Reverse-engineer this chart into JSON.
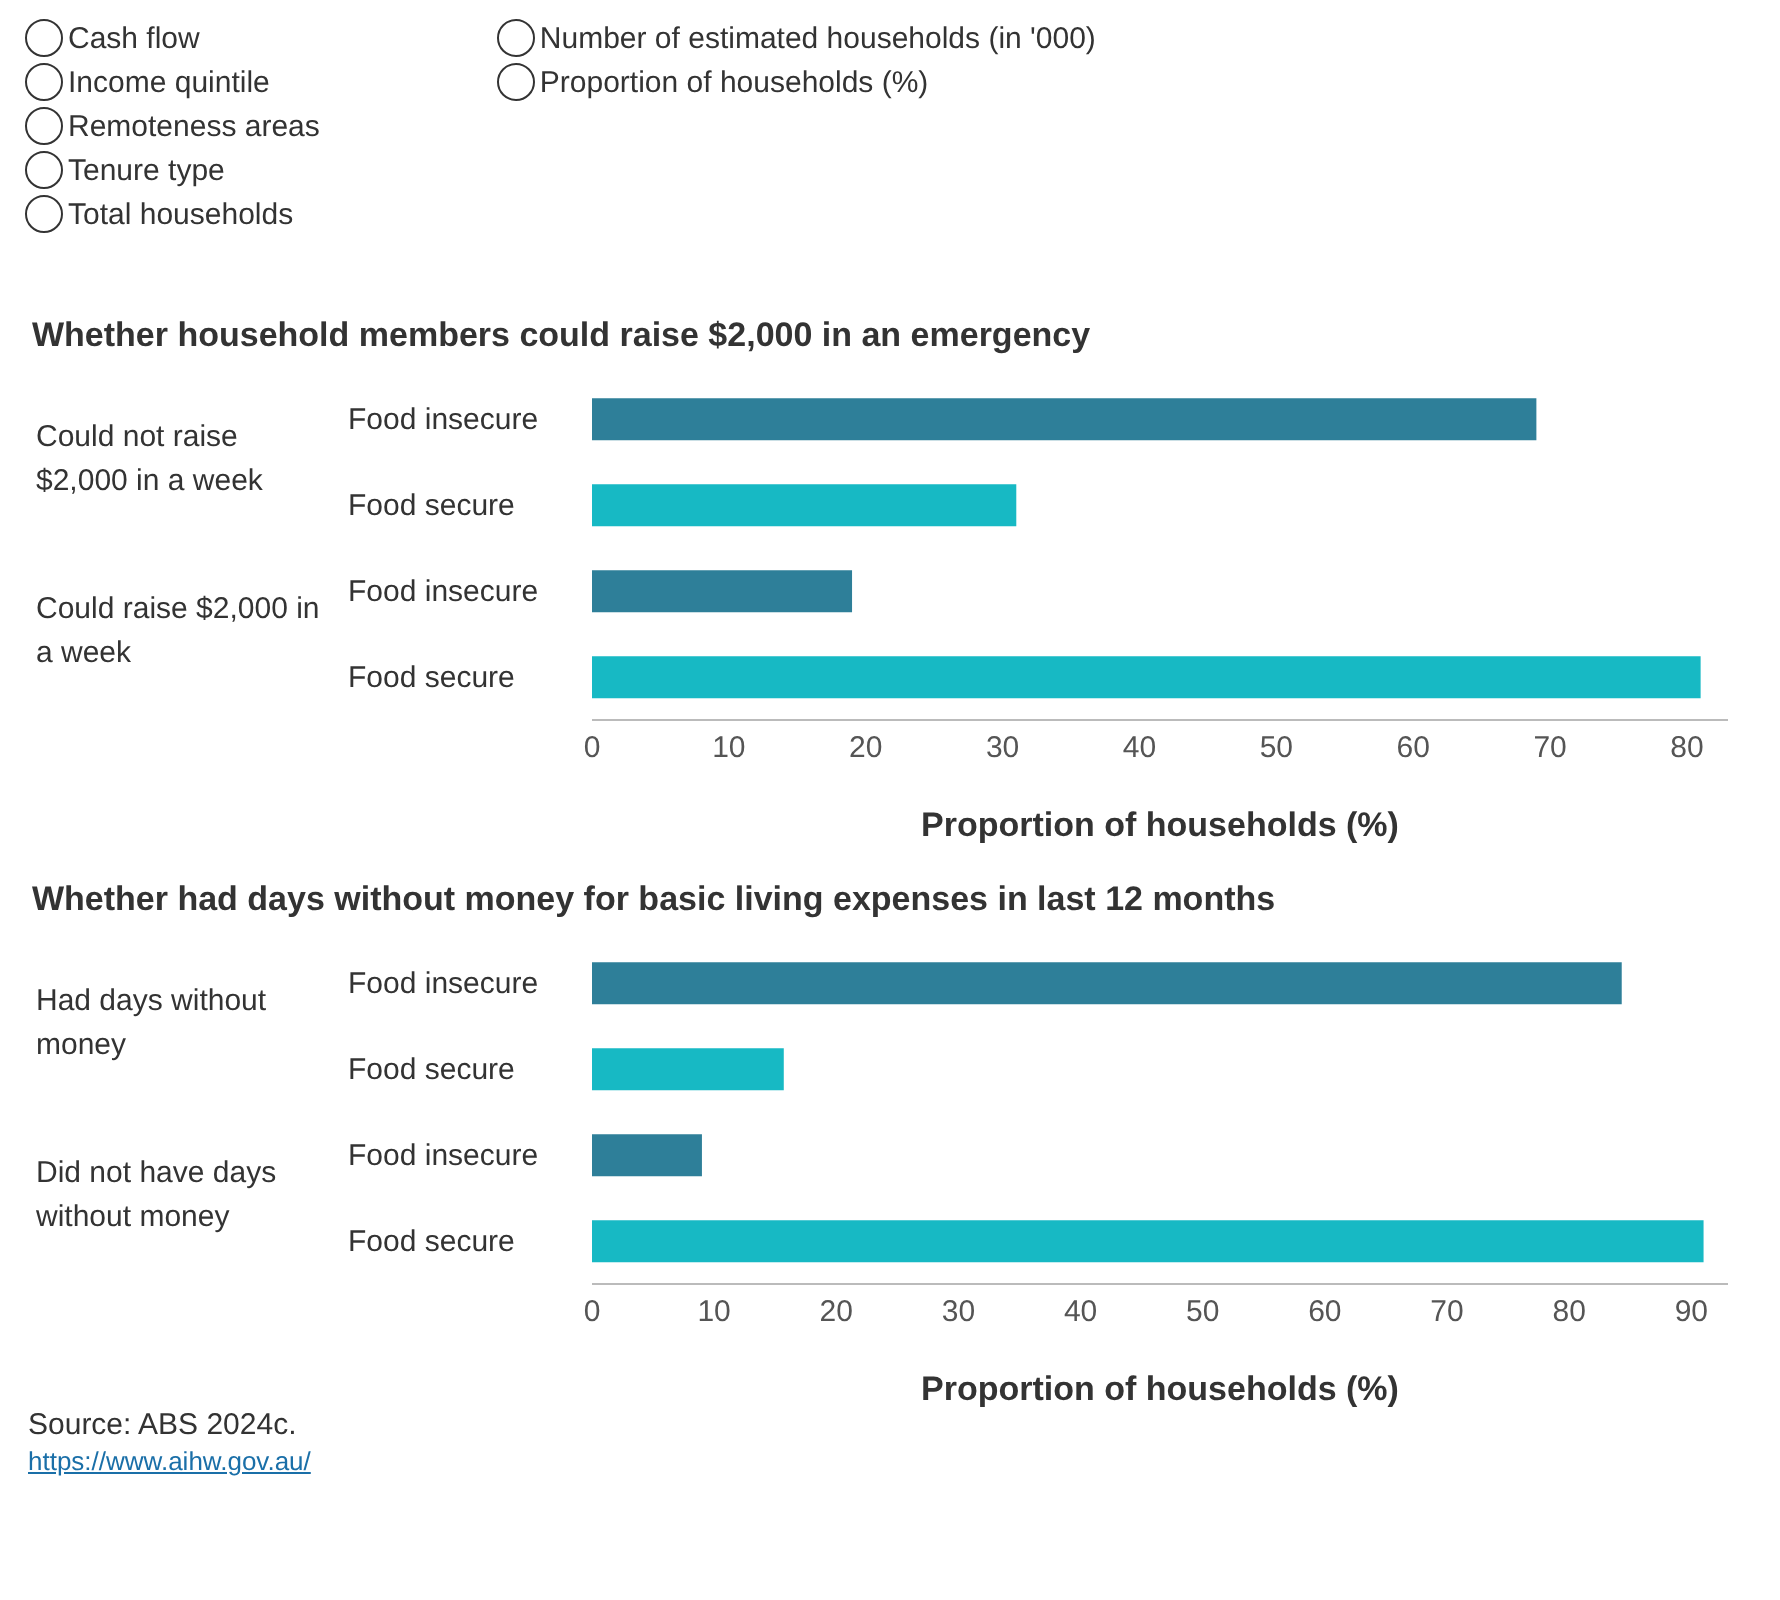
{
  "chart_data": [
    {
      "type": "other",
      "annotations": [
        "Cash flow",
        "Income quintile",
        "Remoteness areas",
        "Tenure type",
        "Total households",
        "Number of estimated households (in '000)",
        "Proportion of households (%)"
      ]
    },
    {
      "type": "bar",
      "orientation": "horizontal",
      "title": "Whether household members could raise $2,000 in an emergency",
      "categories": [
        "Food insecure",
        "Food secure",
        "Food insecure",
        "Food secure"
      ],
      "values": [
        69,
        31,
        19,
        81
      ],
      "colors": [
        "#2e7f99",
        "#17b9c4",
        "#2e7f99",
        "#17b9c4"
      ],
      "annotations": [
        "Could not raise $2,000 in a week",
        "Could raise $2,000 in a week"
      ],
      "xlabel": "Proportion of households (%)",
      "xlim": [
        0,
        83
      ],
      "xticks": [
        0,
        10,
        20,
        30,
        40,
        50,
        60,
        70,
        80
      ]
    },
    {
      "type": "bar",
      "orientation": "horizontal",
      "title": "Whether had days without money for basic living expenses in last 12 months",
      "categories": [
        "Food insecure",
        "Food secure",
        "Food insecure",
        "Food secure"
      ],
      "values": [
        84.3,
        15.7,
        9,
        91
      ],
      "colors": [
        "#2e7f99",
        "#17b9c4",
        "#2e7f99",
        "#17b9c4"
      ],
      "annotations": [
        "Had days without money",
        "Did not have days without money",
        "Source: ABS 2024c.",
        "https://www.aihw.gov.au/"
      ],
      "xlabel": "Proportion of households (%)",
      "xlim": [
        0,
        93
      ],
      "xticks": [
        0,
        10,
        20,
        30,
        40,
        50,
        60,
        70,
        80,
        90
      ]
    }
  ]
}
